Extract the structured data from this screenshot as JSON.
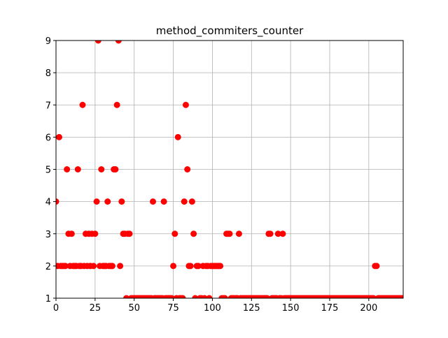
{
  "chart_data": {
    "type": "scatter",
    "title": "method_commiters_counter",
    "x": [
      0,
      1,
      2,
      3,
      4,
      5,
      6,
      7,
      8,
      9,
      10,
      11,
      12,
      13,
      14,
      15,
      16,
      17,
      18,
      19,
      20,
      21,
      22,
      23,
      24,
      25,
      26,
      27,
      28,
      29,
      30,
      31,
      32,
      33,
      34,
      35,
      36,
      37,
      38,
      39,
      40,
      41,
      42,
      43,
      44,
      45,
      46,
      47,
      48,
      49,
      50,
      51,
      52,
      53,
      54,
      55,
      56,
      57,
      58,
      59,
      60,
      61,
      62,
      63,
      64,
      65,
      66,
      67,
      68,
      69,
      70,
      71,
      72,
      73,
      74,
      75,
      76,
      77,
      78,
      79,
      80,
      81,
      82,
      83,
      84,
      85,
      86,
      87,
      88,
      89,
      90,
      91,
      92,
      93,
      94,
      95,
      96,
      97,
      98,
      99,
      100,
      101,
      102,
      103,
      104,
      105,
      106,
      107,
      108,
      109,
      110,
      111,
      112,
      113,
      114,
      115,
      116,
      117,
      118,
      119,
      120,
      121,
      122,
      123,
      124,
      125,
      126,
      127,
      128,
      129,
      130,
      131,
      132,
      133,
      134,
      135,
      136,
      137,
      138,
      139,
      140,
      141,
      142,
      143,
      144,
      145,
      146,
      147,
      148,
      149,
      150,
      151,
      152,
      153,
      154,
      155,
      156,
      157,
      158,
      159,
      160,
      161,
      162,
      163,
      164,
      165,
      166,
      167,
      168,
      169,
      170,
      171,
      172,
      173,
      174,
      175,
      176,
      177,
      178,
      179,
      180,
      181,
      182,
      183,
      184,
      185,
      186,
      187,
      188,
      189,
      190,
      191,
      192,
      193,
      194,
      195,
      196,
      197,
      198,
      199,
      200,
      201,
      202,
      203,
      204,
      205,
      206,
      207,
      208,
      209,
      210,
      211,
      212,
      213,
      214,
      215,
      216,
      217,
      218,
      219,
      220,
      221
    ],
    "values": [
      4,
      2,
      6,
      2,
      2,
      2,
      2,
      5,
      3,
      2,
      3,
      2,
      2,
      2,
      5,
      2,
      2,
      7,
      2,
      3,
      2,
      3,
      2,
      3,
      2,
      3,
      4,
      9,
      2,
      5,
      2,
      2,
      2,
      4,
      2,
      2,
      2,
      5,
      5,
      7,
      9,
      2,
      4,
      3,
      3,
      1,
      3,
      3,
      1,
      1,
      1,
      1,
      1,
      1,
      1,
      1,
      1,
      1,
      1,
      1,
      1,
      1,
      4,
      1,
      1,
      1,
      1,
      1,
      1,
      4,
      1,
      1,
      1,
      1,
      1,
      2,
      3,
      1,
      6,
      1,
      1,
      1,
      4,
      7,
      5,
      2,
      2,
      4,
      3,
      1,
      2,
      2,
      1,
      1,
      2,
      1,
      2,
      2,
      1,
      2,
      2,
      2,
      2,
      2,
      2,
      2,
      1,
      1,
      1,
      3,
      3,
      3,
      1,
      1,
      1,
      1,
      1,
      3,
      1,
      1,
      1,
      1,
      1,
      1,
      1,
      1,
      1,
      1,
      1,
      1,
      1,
      1,
      1,
      1,
      1,
      1,
      3,
      3,
      1,
      1,
      1,
      1,
      3,
      1,
      1,
      3,
      1,
      1,
      1,
      1,
      1,
      1,
      1,
      1,
      1,
      1,
      1,
      1,
      1,
      1,
      1,
      1,
      1,
      1,
      1,
      1,
      1,
      1,
      1,
      1,
      1,
      1,
      1,
      1,
      1,
      1,
      1,
      1,
      1,
      1,
      1,
      1,
      1,
      1,
      1,
      1,
      1,
      1,
      1,
      1,
      1,
      1,
      1,
      1,
      1,
      1,
      1,
      1,
      1,
      1,
      1,
      1,
      1,
      1,
      2,
      2,
      1,
      1,
      1,
      1,
      1,
      1,
      1,
      1,
      1,
      1,
      1,
      1,
      1,
      1,
      1,
      1
    ],
    "color": "red",
    "xlim": [
      0,
      222
    ],
    "xticks": [
      0,
      25,
      50,
      75,
      100,
      125,
      150,
      175,
      200
    ],
    "ylim": [
      1,
      9
    ],
    "yticks": [
      1,
      2,
      3,
      4,
      5,
      6,
      7,
      8,
      9
    ],
    "grid": true
  }
}
